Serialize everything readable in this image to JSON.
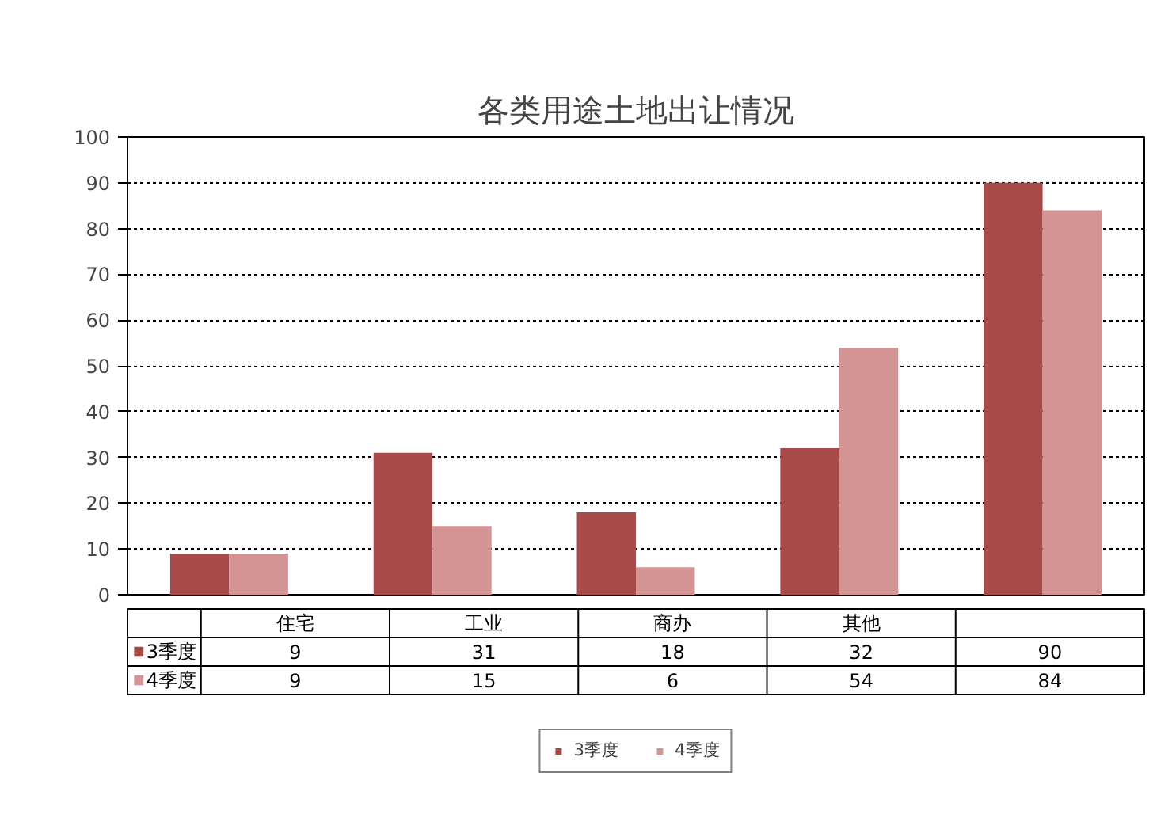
{
  "chart_data": {
    "type": "bar",
    "title": "各类用途土地出让情况",
    "categories": [
      "住宅",
      "工业",
      "商办",
      "其他",
      null
    ],
    "series": [
      {
        "name": "3季度",
        "color": "#a84a4a",
        "values": [
          9,
          31,
          18,
          32,
          90
        ]
      },
      {
        "name": "4季度",
        "color": "#d49494",
        "values": [
          9,
          15,
          6,
          54,
          84
        ]
      }
    ],
    "ylim": [
      0,
      100
    ],
    "yticks": [
      0,
      10,
      20,
      30,
      40,
      50,
      60,
      70,
      80,
      90,
      100
    ],
    "grid": "y",
    "legend": "bottom",
    "data_labels": true,
    "tick_labels": "y"
  }
}
